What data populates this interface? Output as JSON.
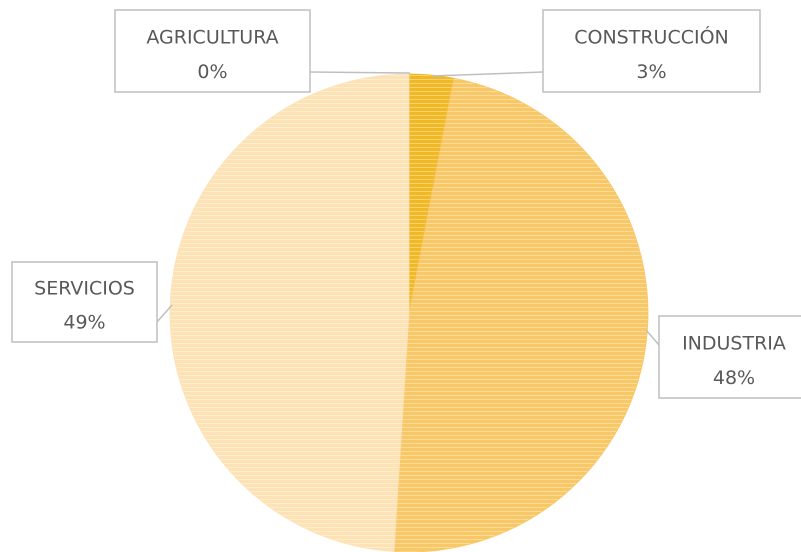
{
  "chart_data": {
    "type": "pie",
    "categories": [
      "AGRICULTURA",
      "CONSTRUCCIÓN",
      "INDUSTRIA",
      "SERVICIOS"
    ],
    "values": [
      0,
      3,
      48,
      49
    ],
    "value_labels": [
      "0%",
      "3%",
      "48%",
      "49%"
    ],
    "colors": [
      "#b8860b",
      "#efb824",
      "#f8c766",
      "#fde2b6"
    ]
  }
}
